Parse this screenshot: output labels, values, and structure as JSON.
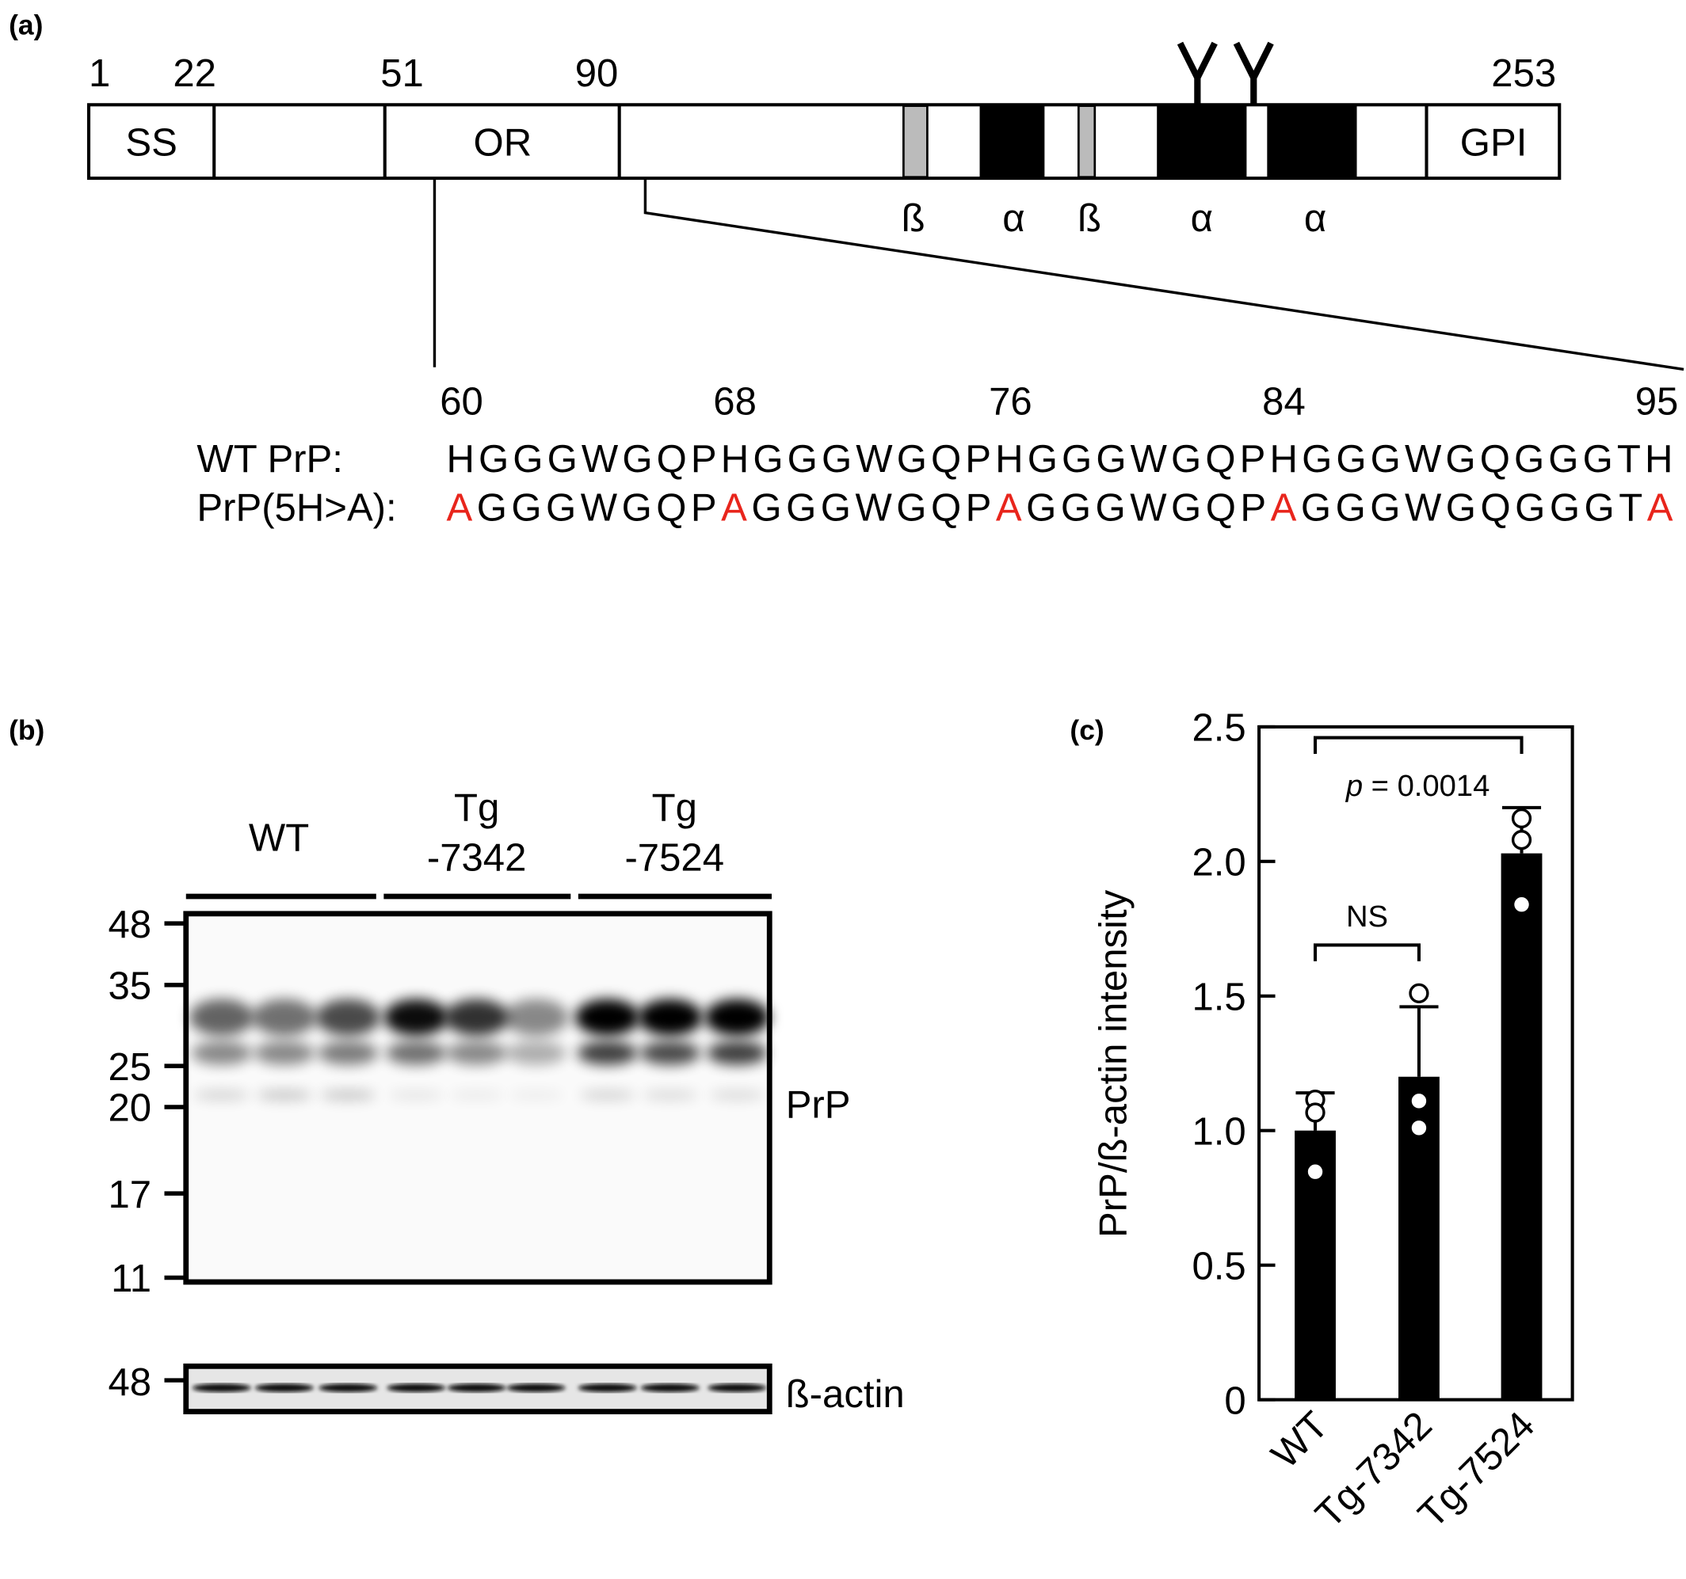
{
  "panel_a": {
    "label": "(a)",
    "positions": [
      1,
      22,
      51,
      90,
      253
    ],
    "domains": [
      "SS",
      "OR",
      "GPI"
    ],
    "structures": [
      "ß",
      "α",
      "ß",
      "α",
      "α"
    ],
    "sequence_positions": [
      60,
      68,
      76,
      84,
      95
    ],
    "wt_label": "WT PrP:",
    "wt_sequence": "HGGGWGQPHGGGWGQPHGGGWGQPHGGGWGQGGGTH",
    "mutant_label": "PrP(5H>A):",
    "mutant_segments": [
      {
        "text": "A",
        "color": "#e8251c"
      },
      {
        "text": "GGGWGQP",
        "color": "#000000"
      },
      {
        "text": "A",
        "color": "#e8251c"
      },
      {
        "text": "GGGWGQP",
        "color": "#000000"
      },
      {
        "text": "A",
        "color": "#e8251c"
      },
      {
        "text": "GGGWGQP",
        "color": "#000000"
      },
      {
        "text": "A",
        "color": "#e8251c"
      },
      {
        "text": "GGGWGQGGGT",
        "color": "#000000"
      },
      {
        "text": "A",
        "color": "#e8251c"
      }
    ]
  },
  "panel_b": {
    "label": "(b)",
    "groups": [
      [
        "WT"
      ],
      [
        "Tg",
        "-7342"
      ],
      [
        "Tg",
        "-7524"
      ]
    ],
    "markers": [
      48,
      35,
      25,
      20,
      17,
      11
    ],
    "blot_label": "PrP",
    "actin_marker": 48,
    "actin_label": "ß-actin"
  },
  "chart_data": {
    "type": "bar",
    "panel_label": "(c)",
    "y_label": "PrP/ß-actin intensity",
    "categories": [
      "WT",
      "Tg-7342",
      "Tg-7524"
    ],
    "values": [
      1.0,
      1.2,
      2.03
    ],
    "errors": [
      0.14,
      0.26,
      0.17
    ],
    "points": [
      [
        1.115,
        1.067,
        0.847
      ],
      [
        1.51,
        1.11,
        1.01
      ],
      [
        2.16,
        2.08,
        1.84
      ]
    ],
    "color": "#000000",
    "ylim": [
      0,
      2.5
    ],
    "yticks": [
      0,
      0.5,
      {
        "value": 1,
        "label": "1.0"
      },
      1.5,
      {
        "value": 2,
        "label": "2.0"
      },
      2.5
    ],
    "annotations": [
      {
        "italic": "p",
        "text": "= 0.0014"
      },
      {
        "text": "NS"
      }
    ]
  }
}
